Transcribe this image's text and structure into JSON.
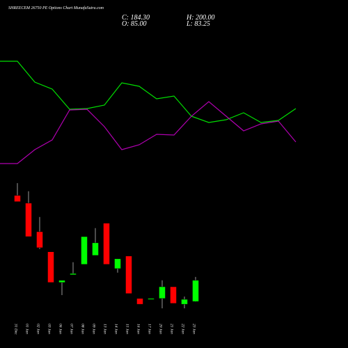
{
  "header": {
    "title": "SHREECEM 26750 PE Options Chart MunafaSutra.com",
    "close": "C: 184.30",
    "open": "O: 85.00",
    "high": "H: 200.00",
    "low": "L: 83.25"
  },
  "chart_data": [
    {
      "type": "line",
      "categories": [
        null,
        null,
        null,
        null,
        null,
        null,
        null,
        null,
        null,
        null,
        null,
        null,
        null,
        null,
        null,
        null,
        null,
        null
      ],
      "ylim": [
        0,
        300
      ],
      "series": [
        {
          "color": "#00e000",
          "values": [
            212,
            212,
            182,
            172,
            143,
            144,
            149,
            181,
            176,
            158,
            162,
            133,
            124,
            128,
            138,
            124,
            127,
            144
          ]
        },
        {
          "color": "#b000b0",
          "values": [
            65,
            65,
            85,
            99,
            142,
            143,
            118,
            85,
            92,
            107,
            106,
            133,
            154,
            133,
            112,
            122,
            126,
            96
          ]
        }
      ]
    },
    {
      "type": "candlestick",
      "categories": [
        "31 Dec",
        "01 Jan",
        "02 Jan",
        "03 Jan",
        "06 Jan",
        "07 Jan",
        "08 Jan",
        "09 Jan",
        "13 Jan",
        "14 Jan",
        "15 Jan",
        "16 Jan",
        "17 Jan",
        "20 Jan",
        "21 Jan",
        "22 Jan",
        "23 Jan"
      ],
      "open": [
        582,
        546,
        412,
        318,
        174,
        210,
        259,
        301,
        452,
        239,
        298,
        99,
        95,
        99,
        154,
        72,
        85
      ],
      "close": [
        553,
        389,
        337,
        174,
        184,
        216,
        389,
        360,
        259,
        285,
        122,
        72,
        99,
        154,
        76,
        95,
        184.3
      ],
      "high": [
        640,
        602,
        481,
        318,
        184,
        269,
        389,
        429,
        452,
        285,
        298,
        99,
        99,
        184,
        154,
        108,
        200
      ],
      "low": [
        553,
        389,
        331,
        174,
        115,
        210,
        259,
        301,
        259,
        220,
        122,
        72,
        95,
        53,
        76,
        53,
        83.25
      ],
      "up_color": "#00ff00",
      "down_color": "#ff0000",
      "ylim": [
        30,
        650
      ]
    }
  ]
}
